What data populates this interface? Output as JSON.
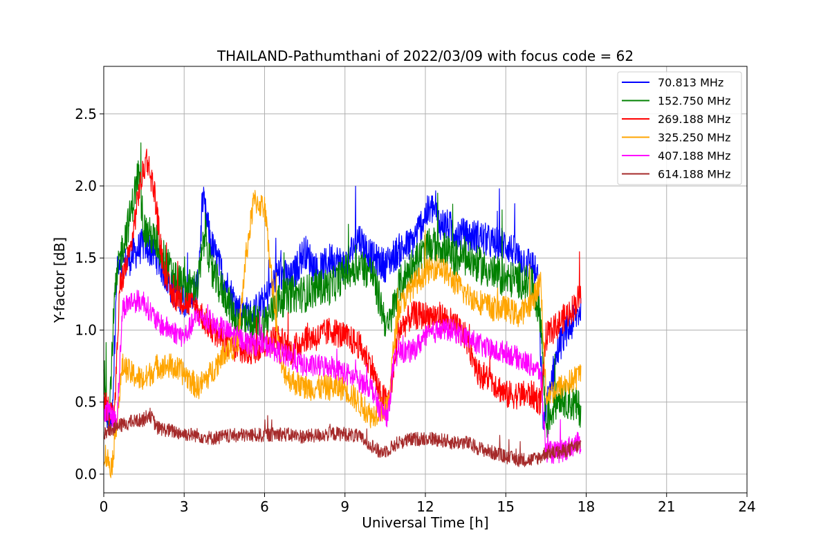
{
  "chart_data": {
    "type": "line",
    "title": "THAILAND-Pathumthani of 2022/03/09 with focus code = 62",
    "xlabel": "Universal Time [h]",
    "ylabel": "Y-factor [dB]",
    "xlim": [
      0,
      24
    ],
    "ylim": [
      -0.13,
      2.83
    ],
    "xticks": [
      0,
      3,
      6,
      9,
      12,
      15,
      18,
      21,
      24
    ],
    "xtick_labels": [
      "0",
      "3",
      "6",
      "9",
      "12",
      "15",
      "18",
      "21",
      "24"
    ],
    "yticks": [
      0.0,
      0.5,
      1.0,
      1.5,
      2.0,
      2.5
    ],
    "ytick_labels": [
      "0.0",
      "0.5",
      "1.0",
      "1.5",
      "2.0",
      "2.5"
    ],
    "grid": true,
    "legend_position": "top-right",
    "series": [
      {
        "name": " 70.813 MHz",
        "color": "#0000ff",
        "noise": 0.12,
        "x": [
          0,
          0.3,
          0.5,
          1,
          1.5,
          2,
          2.5,
          3,
          3.5,
          3.7,
          4,
          4.5,
          5,
          5.5,
          6,
          6.5,
          7,
          7.5,
          8,
          8.5,
          9,
          9.5,
          10,
          10.5,
          11,
          11.5,
          12,
          12.3,
          12.5,
          13,
          13.5,
          14,
          14.5,
          15,
          15.5,
          16,
          16.2,
          16.4,
          16.7,
          17,
          17.5,
          17.8
        ],
        "y": [
          0.5,
          0.3,
          1.4,
          1.5,
          1.6,
          1.5,
          1.3,
          1.2,
          1.3,
          1.9,
          1.6,
          1.35,
          1.15,
          1.1,
          1.2,
          1.4,
          1.35,
          1.55,
          1.4,
          1.5,
          1.45,
          1.65,
          1.5,
          1.45,
          1.55,
          1.6,
          1.8,
          1.85,
          1.75,
          1.7,
          1.65,
          1.65,
          1.6,
          1.6,
          1.5,
          1.45,
          1.35,
          0.35,
          0.65,
          0.9,
          1.05,
          1.15
        ]
      },
      {
        "name": "152.750 MHz",
        "color": "#008000",
        "noise": 0.13,
        "x": [
          0,
          0.2,
          0.4,
          0.6,
          1,
          1.3,
          1.5,
          2,
          2.5,
          3,
          3.5,
          3.8,
          4,
          4.5,
          5,
          5.5,
          6,
          6.5,
          7,
          7.5,
          8,
          8.5,
          9,
          9.5,
          10,
          10.3,
          10.6,
          11,
          11.5,
          12,
          12.5,
          13,
          13.5,
          14,
          14.5,
          15,
          15.5,
          16,
          16.3,
          16.5,
          17,
          17.8
        ],
        "y": [
          0.7,
          0.4,
          1.2,
          1.5,
          1.8,
          2.1,
          1.7,
          1.6,
          1.4,
          1.3,
          1.3,
          1.7,
          1.4,
          1.25,
          1.05,
          1.05,
          1.05,
          1.2,
          1.25,
          1.25,
          1.3,
          1.3,
          1.4,
          1.45,
          1.4,
          1.2,
          1.0,
          1.3,
          1.45,
          1.55,
          1.6,
          1.5,
          1.5,
          1.45,
          1.4,
          1.35,
          1.35,
          1.3,
          1.1,
          0.35,
          0.55,
          0.45
        ]
      },
      {
        "name": "269.188 MHz",
        "color": "#ff0000",
        "noise": 0.1,
        "x": [
          0,
          0.4,
          0.6,
          1,
          1.3,
          1.6,
          1.9,
          2.2,
          2.5,
          3,
          3.5,
          4,
          5,
          5.5,
          6,
          6.5,
          7,
          7.5,
          8,
          8.5,
          9,
          9.5,
          10,
          10.3,
          10.6,
          10.8,
          11,
          11.5,
          12,
          12.5,
          13,
          13.5,
          14,
          14.5,
          15,
          15.5,
          16,
          16.3,
          16.5,
          17,
          17.5,
          17.8
        ],
        "y": [
          0.5,
          0.4,
          1.3,
          1.55,
          1.95,
          2.2,
          1.95,
          1.45,
          1.25,
          1.2,
          1.15,
          1.0,
          0.85,
          0.85,
          0.9,
          0.95,
          0.85,
          0.95,
          0.95,
          1.0,
          0.95,
          0.9,
          0.75,
          0.55,
          0.5,
          0.7,
          1.0,
          1.1,
          1.1,
          1.1,
          1.05,
          0.95,
          0.7,
          0.65,
          0.55,
          0.55,
          0.55,
          0.5,
          0.95,
          1.05,
          1.15,
          1.25
        ]
      },
      {
        "name": "325.250 MHz",
        "color": "#ffa500",
        "noise": 0.09,
        "x": [
          0,
          0.3,
          0.5,
          0.7,
          1,
          1.5,
          2,
          2.5,
          3,
          3.5,
          4,
          4.5,
          5,
          5.3,
          5.6,
          6,
          6.3,
          6.6,
          7,
          7.5,
          8,
          8.5,
          9,
          9.5,
          10,
          10.3,
          10.6,
          10.8,
          11,
          11.5,
          12,
          12.5,
          13,
          13.5,
          14,
          14.5,
          15,
          15.5,
          16,
          16.3,
          16.5,
          17,
          17.5,
          17.8
        ],
        "y": [
          0.15,
          0.05,
          0.4,
          0.75,
          0.7,
          0.65,
          0.75,
          0.75,
          0.7,
          0.6,
          0.7,
          0.85,
          0.9,
          1.5,
          1.9,
          1.85,
          1.3,
          0.75,
          0.65,
          0.6,
          0.6,
          0.6,
          0.6,
          0.5,
          0.4,
          0.45,
          0.45,
          0.85,
          1.15,
          1.3,
          1.4,
          1.45,
          1.35,
          1.25,
          1.2,
          1.15,
          1.15,
          1.1,
          1.2,
          1.35,
          0.55,
          0.6,
          0.65,
          0.7
        ]
      },
      {
        "name": "407.188 MHz",
        "color": "#ff00ff",
        "noise": 0.08,
        "x": [
          0,
          0.3,
          0.5,
          0.7,
          1,
          1.5,
          2,
          2.5,
          3,
          3.5,
          4,
          4.5,
          5,
          5.5,
          6,
          6.5,
          7,
          7.5,
          8,
          8.5,
          9,
          9.5,
          10,
          10.3,
          10.6,
          10.8,
          11,
          11.5,
          12,
          12.5,
          13,
          13.5,
          14,
          14.5,
          15,
          15.5,
          16,
          16.3,
          16.5,
          17,
          17.5,
          17.8
        ],
        "y": [
          0.45,
          0.4,
          0.4,
          1.15,
          1.2,
          1.2,
          1.05,
          1.0,
          0.95,
          1.1,
          1.05,
          1.0,
          0.95,
          0.9,
          0.9,
          0.85,
          0.8,
          0.75,
          0.75,
          0.75,
          0.7,
          0.65,
          0.6,
          0.45,
          0.4,
          0.75,
          0.85,
          0.85,
          0.95,
          1.0,
          1.0,
          0.95,
          0.9,
          0.85,
          0.85,
          0.8,
          0.75,
          0.7,
          0.15,
          0.15,
          0.2,
          0.22
        ]
      },
      {
        "name": "614.188 MHz",
        "color": "#a52a2a",
        "noise": 0.05,
        "x": [
          0,
          0.5,
          1,
          1.5,
          1.7,
          2,
          2.5,
          3,
          3.5,
          4,
          4.5,
          5,
          5.5,
          6,
          6.5,
          7,
          7.5,
          8,
          8.5,
          9,
          9.5,
          10,
          10.3,
          10.6,
          11,
          11.5,
          12,
          12.5,
          13,
          13.5,
          14,
          14.5,
          15,
          15.5,
          16,
          16.3,
          16.5,
          17,
          17.5,
          17.8
        ],
        "y": [
          0.28,
          0.33,
          0.36,
          0.38,
          0.42,
          0.32,
          0.3,
          0.28,
          0.27,
          0.25,
          0.26,
          0.27,
          0.27,
          0.27,
          0.28,
          0.27,
          0.26,
          0.27,
          0.28,
          0.28,
          0.26,
          0.2,
          0.15,
          0.17,
          0.22,
          0.24,
          0.25,
          0.24,
          0.22,
          0.22,
          0.18,
          0.15,
          0.12,
          0.1,
          0.1,
          0.12,
          0.15,
          0.15,
          0.18,
          0.2
        ]
      }
    ]
  }
}
